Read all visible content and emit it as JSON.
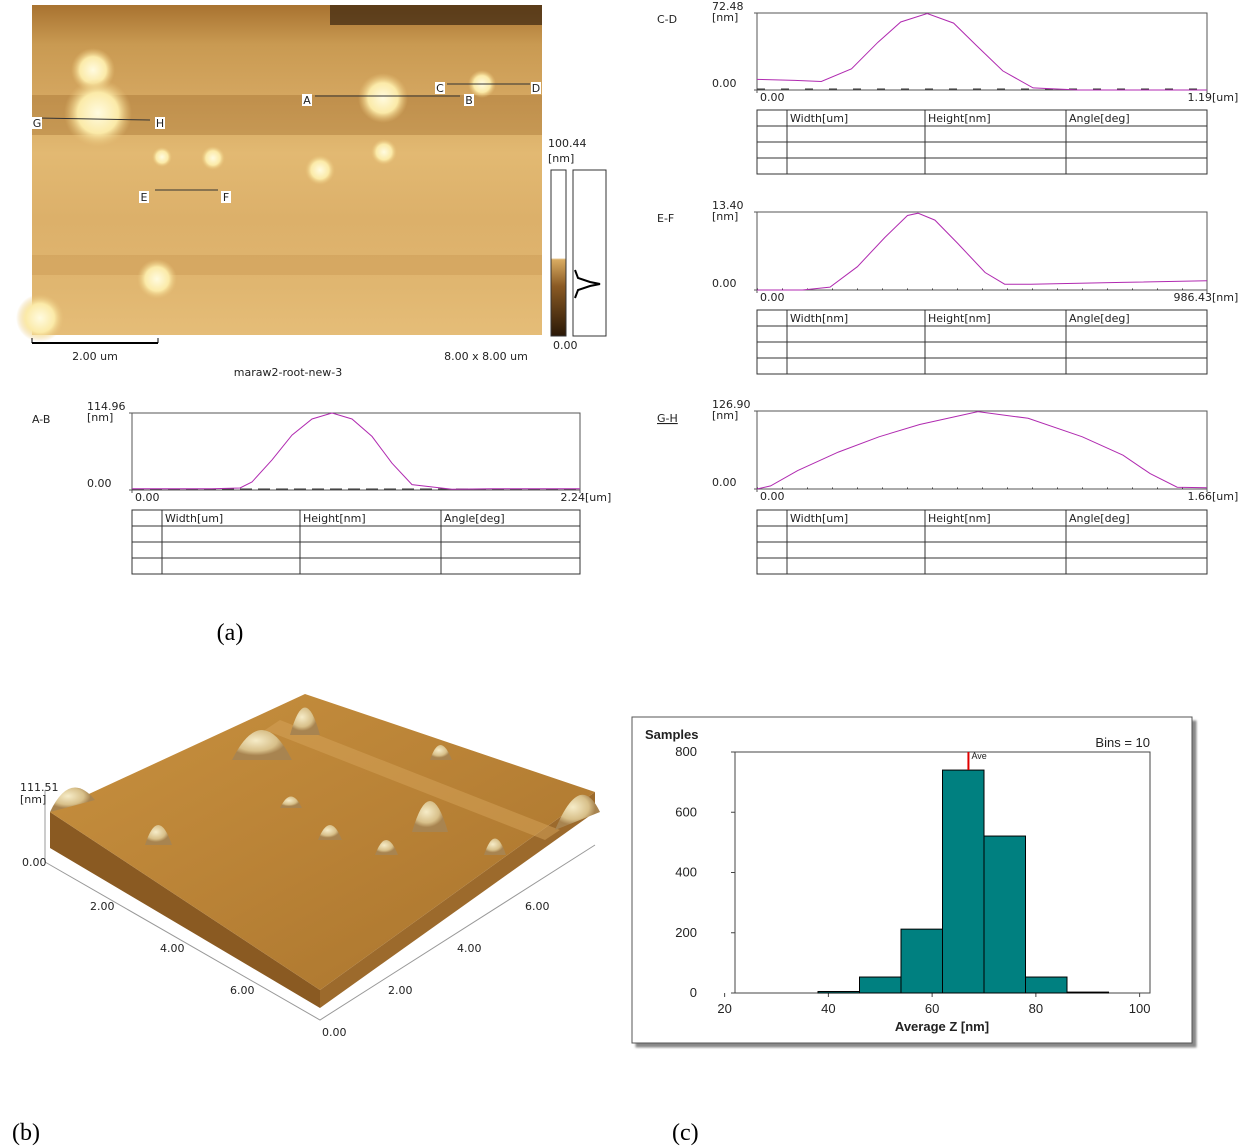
{
  "chart_data": [
    {
      "type": "line",
      "title": "A-B",
      "ylabel": "[nm]",
      "xlabel": "[um]",
      "color": "#b02ab0",
      "x": [
        0,
        0.2,
        0.4,
        0.54,
        0.6,
        0.7,
        0.8,
        0.9,
        1.0,
        1.1,
        1.2,
        1.3,
        1.4,
        1.6,
        1.8,
        2.0,
        2.24
      ],
      "values": [
        2,
        2,
        2,
        3,
        12,
        45,
        82,
        106,
        115,
        106,
        80,
        40,
        8,
        1,
        2,
        2,
        2
      ],
      "xlim": [
        0,
        2.24
      ],
      "ylim": [
        0,
        114.96
      ],
      "xticks": [
        {
          "value": 0,
          "label": "0.00"
        },
        2.24
      ],
      "yticks": [
        {
          "value": 0,
          "label": "0.00"
        },
        114.96
      ],
      "table_columns": [
        "Width[um]",
        "Height[nm]",
        "Angle[deg]"
      ]
    },
    {
      "type": "line",
      "title": "C-D",
      "ylabel": "[nm]",
      "xlabel": "[um]",
      "color": "#b02ab0",
      "x": [
        0,
        0.1,
        0.17,
        0.25,
        0.32,
        0.38,
        0.45,
        0.52,
        0.58,
        0.65,
        0.73,
        0.85,
        1.0,
        1.19
      ],
      "values": [
        10,
        9,
        8,
        20,
        45,
        64,
        72,
        63,
        42,
        18,
        2,
        0,
        0,
        0
      ],
      "xlim": [
        0,
        1.19
      ],
      "ylim": [
        0,
        72.48
      ],
      "xticks": [
        {
          "value": 0,
          "label": "0.00"
        },
        1.19
      ],
      "yticks": [
        {
          "value": 0,
          "label": "0.00"
        },
        72.48
      ],
      "table_columns": [
        "Width[um]",
        "Height[nm]",
        "Angle[deg]"
      ]
    },
    {
      "type": "line",
      "title": "E-F",
      "ylabel": "[nm]",
      "xlabel": "[nm]",
      "color": "#b02ab0",
      "x": [
        0,
        100,
        160,
        220,
        280,
        330,
        353,
        390,
        440,
        500,
        543,
        600,
        800,
        986.43
      ],
      "values": [
        0,
        0,
        0.5,
        4,
        9,
        12.8,
        13.2,
        12,
        8,
        3,
        1,
        1,
        1.3,
        1.6
      ],
      "xlim": [
        0,
        986.43
      ],
      "ylim": [
        0,
        13.4
      ],
      "xticks": [
        {
          "value": 0,
          "label": "0.00"
        },
        986.43
      ],
      "yticks": [
        {
          "value": 0,
          "label": "0.00"
        },
        {
          "value": 13.4,
          "label": "13.40"
        }
      ],
      "table_columns": [
        "Width[nm]",
        "Height[nm]",
        "Angle[deg]"
      ]
    },
    {
      "type": "line",
      "title": "G-H",
      "ylabel": "[nm]",
      "xlabel": "[um]",
      "color": "#b02ab0",
      "x": [
        0,
        0.05,
        0.15,
        0.3,
        0.45,
        0.6,
        0.815,
        1.0,
        1.2,
        1.35,
        1.45,
        1.55,
        1.66
      ],
      "values": [
        0,
        5,
        30,
        60,
        85,
        105,
        126,
        115,
        85,
        55,
        25,
        3,
        2
      ],
      "xlim": [
        0,
        1.66
      ],
      "ylim": [
        0,
        126.9
      ],
      "xticks": [
        {
          "value": 0,
          "label": "0.00"
        },
        1.66
      ],
      "yticks": [
        {
          "value": 0,
          "label": "0.00"
        },
        {
          "value": 126.9,
          "label": "126.90"
        }
      ],
      "table_columns": [
        "Width[um]",
        "Height[nm]",
        "Angle[deg]"
      ]
    },
    {
      "type": "histogram",
      "ylabel": "Samples",
      "xlabel": "Average Z [nm]",
      "annotation": "Bins = 10",
      "color": "#008080",
      "bins": [
        22,
        30,
        38,
        46,
        54,
        62,
        70,
        78,
        86,
        94,
        102
      ],
      "values": [
        0,
        0,
        5,
        53,
        212,
        740,
        521,
        53,
        3,
        0
      ],
      "xlim": [
        22,
        102
      ],
      "ylim": [
        0,
        800
      ],
      "xticks": [
        20,
        40,
        60,
        80,
        100
      ],
      "yticks": [
        0,
        200,
        400,
        600,
        800
      ],
      "average": {
        "value": 67,
        "label": "Ave",
        "color": "#e00000"
      }
    }
  ],
  "afm_image": {
    "colorbar_max": "100.44",
    "colorbar_unit": "[nm]",
    "colorbar_min": "0.00",
    "scale_bar": "2.00 um",
    "size": "8.00 x 8.00 um",
    "filename": "maraw2-root-new-3",
    "markers": [
      "A",
      "B",
      "C",
      "D",
      "E",
      "F",
      "G",
      "H"
    ]
  },
  "view_3d": {
    "z_max": "111.51",
    "z_unit": "[nm]",
    "z_min": "0.00",
    "x_axis_labels": [
      "2.00",
      "4.00",
      "6.00"
    ],
    "y_axis_labels": [
      "0.00",
      "2.00",
      "4.00",
      "6.00"
    ]
  },
  "panels": [
    "(a)",
    "(b)",
    "(c)"
  ]
}
